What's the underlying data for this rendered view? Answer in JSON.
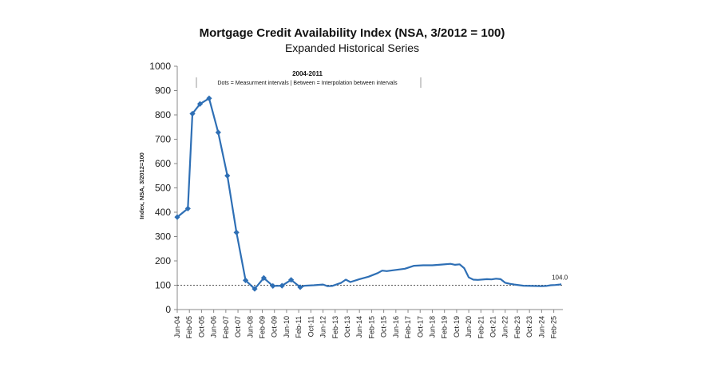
{
  "chart_data": {
    "type": "line",
    "title": "Mortgage Credit Availability Index (NSA, 3/2012 = 100)",
    "subtitle": "Expanded Historical Series",
    "ylabel": "Index, NSA, 3/2012=100",
    "xlabel": "",
    "ylim": [
      0,
      1000
    ],
    "yticks": [
      0,
      100,
      200,
      300,
      400,
      500,
      600,
      700,
      800,
      900,
      1000
    ],
    "x_tick_labels": [
      "Jun-04",
      "Feb-05",
      "Oct-05",
      "Jun-06",
      "Feb-07",
      "Oct-07",
      "Jun-08",
      "Feb-09",
      "Oct-09",
      "Jun-10",
      "Feb-11",
      "Oct-11",
      "Jun-12",
      "Feb-13",
      "Oct-13",
      "Jun-14",
      "Feb-15",
      "Oct-15",
      "Jun-16",
      "Feb-17",
      "Oct-17",
      "Jun-18",
      "Feb-19",
      "Oct-19",
      "Jun-20",
      "Feb-21",
      "Oct-21",
      "Jun-22",
      "Feb-23",
      "Oct-23",
      "Jun-24",
      "Feb-25"
    ],
    "annotation": {
      "title": "2004-2011",
      "text": "Dots = Measurment intervals  |  Between = Interpolation between intervals"
    },
    "reference_line": {
      "y": 100,
      "style": "dotted"
    },
    "end_label": "104.0",
    "series": [
      {
        "color": "#2e6fb5",
        "points": [
          [
            "2004-06",
            380
          ],
          [
            "2005-01",
            415
          ],
          [
            "2005-04",
            805
          ],
          [
            "2005-09",
            845
          ],
          [
            "2006-03",
            868
          ],
          [
            "2006-09",
            728
          ],
          [
            "2007-03",
            550
          ],
          [
            "2007-09",
            317
          ],
          [
            "2008-03",
            120
          ],
          [
            "2008-09",
            85
          ],
          [
            "2009-03",
            130
          ],
          [
            "2009-09",
            97
          ],
          [
            "2010-03",
            98
          ],
          [
            "2010-09",
            122
          ],
          [
            "2011-03",
            92
          ],
          [
            "2011-06",
            98
          ],
          [
            "2011-12",
            100
          ],
          [
            "2012-06",
            103
          ],
          [
            "2012-09",
            96
          ],
          [
            "2012-12",
            97
          ],
          [
            "2013-06",
            110
          ],
          [
            "2013-09",
            123
          ],
          [
            "2013-12",
            113
          ],
          [
            "2014-06",
            125
          ],
          [
            "2014-12",
            135
          ],
          [
            "2015-06",
            150
          ],
          [
            "2015-09",
            160
          ],
          [
            "2015-12",
            158
          ],
          [
            "2016-06",
            163
          ],
          [
            "2016-12",
            168
          ],
          [
            "2017-06",
            180
          ],
          [
            "2017-12",
            182
          ],
          [
            "2018-06",
            182
          ],
          [
            "2018-12",
            185
          ],
          [
            "2019-06",
            188
          ],
          [
            "2019-09",
            184
          ],
          [
            "2019-12",
            186
          ],
          [
            "2020-03",
            170
          ],
          [
            "2020-06",
            132
          ],
          [
            "2020-09",
            123
          ],
          [
            "2020-12",
            122
          ],
          [
            "2021-06",
            125
          ],
          [
            "2021-09",
            124
          ],
          [
            "2021-12",
            127
          ],
          [
            "2022-03",
            125
          ],
          [
            "2022-06",
            110
          ],
          [
            "2022-09",
            106
          ],
          [
            "2022-12",
            103
          ],
          [
            "2023-06",
            98
          ],
          [
            "2023-12",
            97
          ],
          [
            "2024-06",
            96
          ],
          [
            "2024-09",
            97
          ],
          [
            "2024-12",
            100
          ],
          [
            "2025-03",
            101
          ],
          [
            "2025-06",
            103
          ],
          [
            "2025-07",
            104
          ]
        ],
        "markers": [
          [
            "2004-06",
            380
          ],
          [
            "2005-01",
            415
          ],
          [
            "2005-04",
            805
          ],
          [
            "2005-09",
            845
          ],
          [
            "2006-03",
            868
          ],
          [
            "2006-09",
            728
          ],
          [
            "2007-03",
            550
          ],
          [
            "2007-09",
            317
          ],
          [
            "2008-03",
            120
          ],
          [
            "2008-09",
            85
          ],
          [
            "2009-03",
            130
          ],
          [
            "2009-09",
            97
          ],
          [
            "2010-03",
            98
          ],
          [
            "2010-09",
            122
          ],
          [
            "2011-03",
            92
          ]
        ]
      }
    ]
  }
}
